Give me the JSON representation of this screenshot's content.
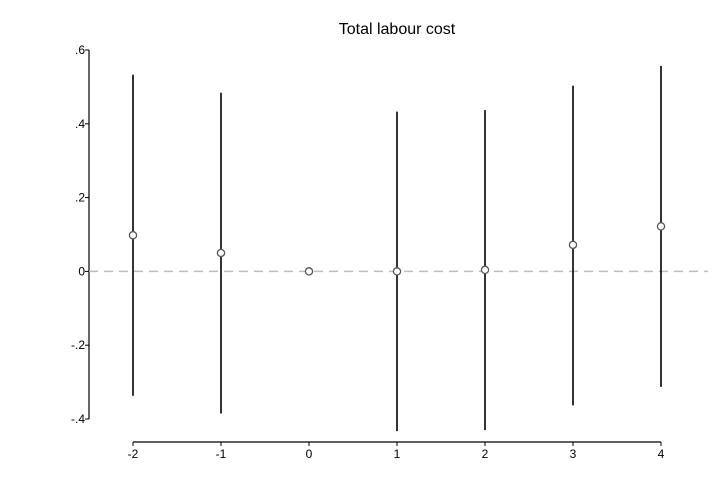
{
  "chart_data": {
    "type": "scatter",
    "title": "Total labour cost",
    "xlabel": "",
    "ylabel": "",
    "x": [
      -2,
      -1,
      0,
      1,
      2,
      3,
      4
    ],
    "x_ticks": [
      "-2",
      "-1",
      "0",
      "1",
      "2",
      "3",
      "4"
    ],
    "y_ticks": [
      {
        "value": 0.6,
        "label": ".6"
      },
      {
        "value": 0.4,
        "label": ".4"
      },
      {
        "value": 0.2,
        "label": ".2"
      },
      {
        "value": 0,
        "label": "0"
      },
      {
        "value": -0.2,
        "label": "-.2"
      },
      {
        "value": -0.4,
        "label": "-.4"
      }
    ],
    "ylim": [
      -0.4,
      0.6
    ],
    "xlim": [
      -2,
      4
    ],
    "series": [
      {
        "estimate": [
          0.098,
          0.05,
          0.0,
          0.0,
          0.004,
          0.072,
          0.122
        ],
        "ci_low": [
          -0.337,
          -0.385,
          0.0,
          -0.433,
          -0.43,
          -0.363,
          -0.313
        ],
        "ci_high": [
          0.533,
          0.484,
          0.0,
          0.433,
          0.437,
          0.503,
          0.557
        ]
      }
    ],
    "reference_line": {
      "y": 0,
      "style": "dashed",
      "color": "#bdbdbd"
    },
    "grid": false,
    "legend": "none",
    "colors": {
      "marker": "#555555",
      "ci": "#000000",
      "axis": "#000000"
    }
  }
}
